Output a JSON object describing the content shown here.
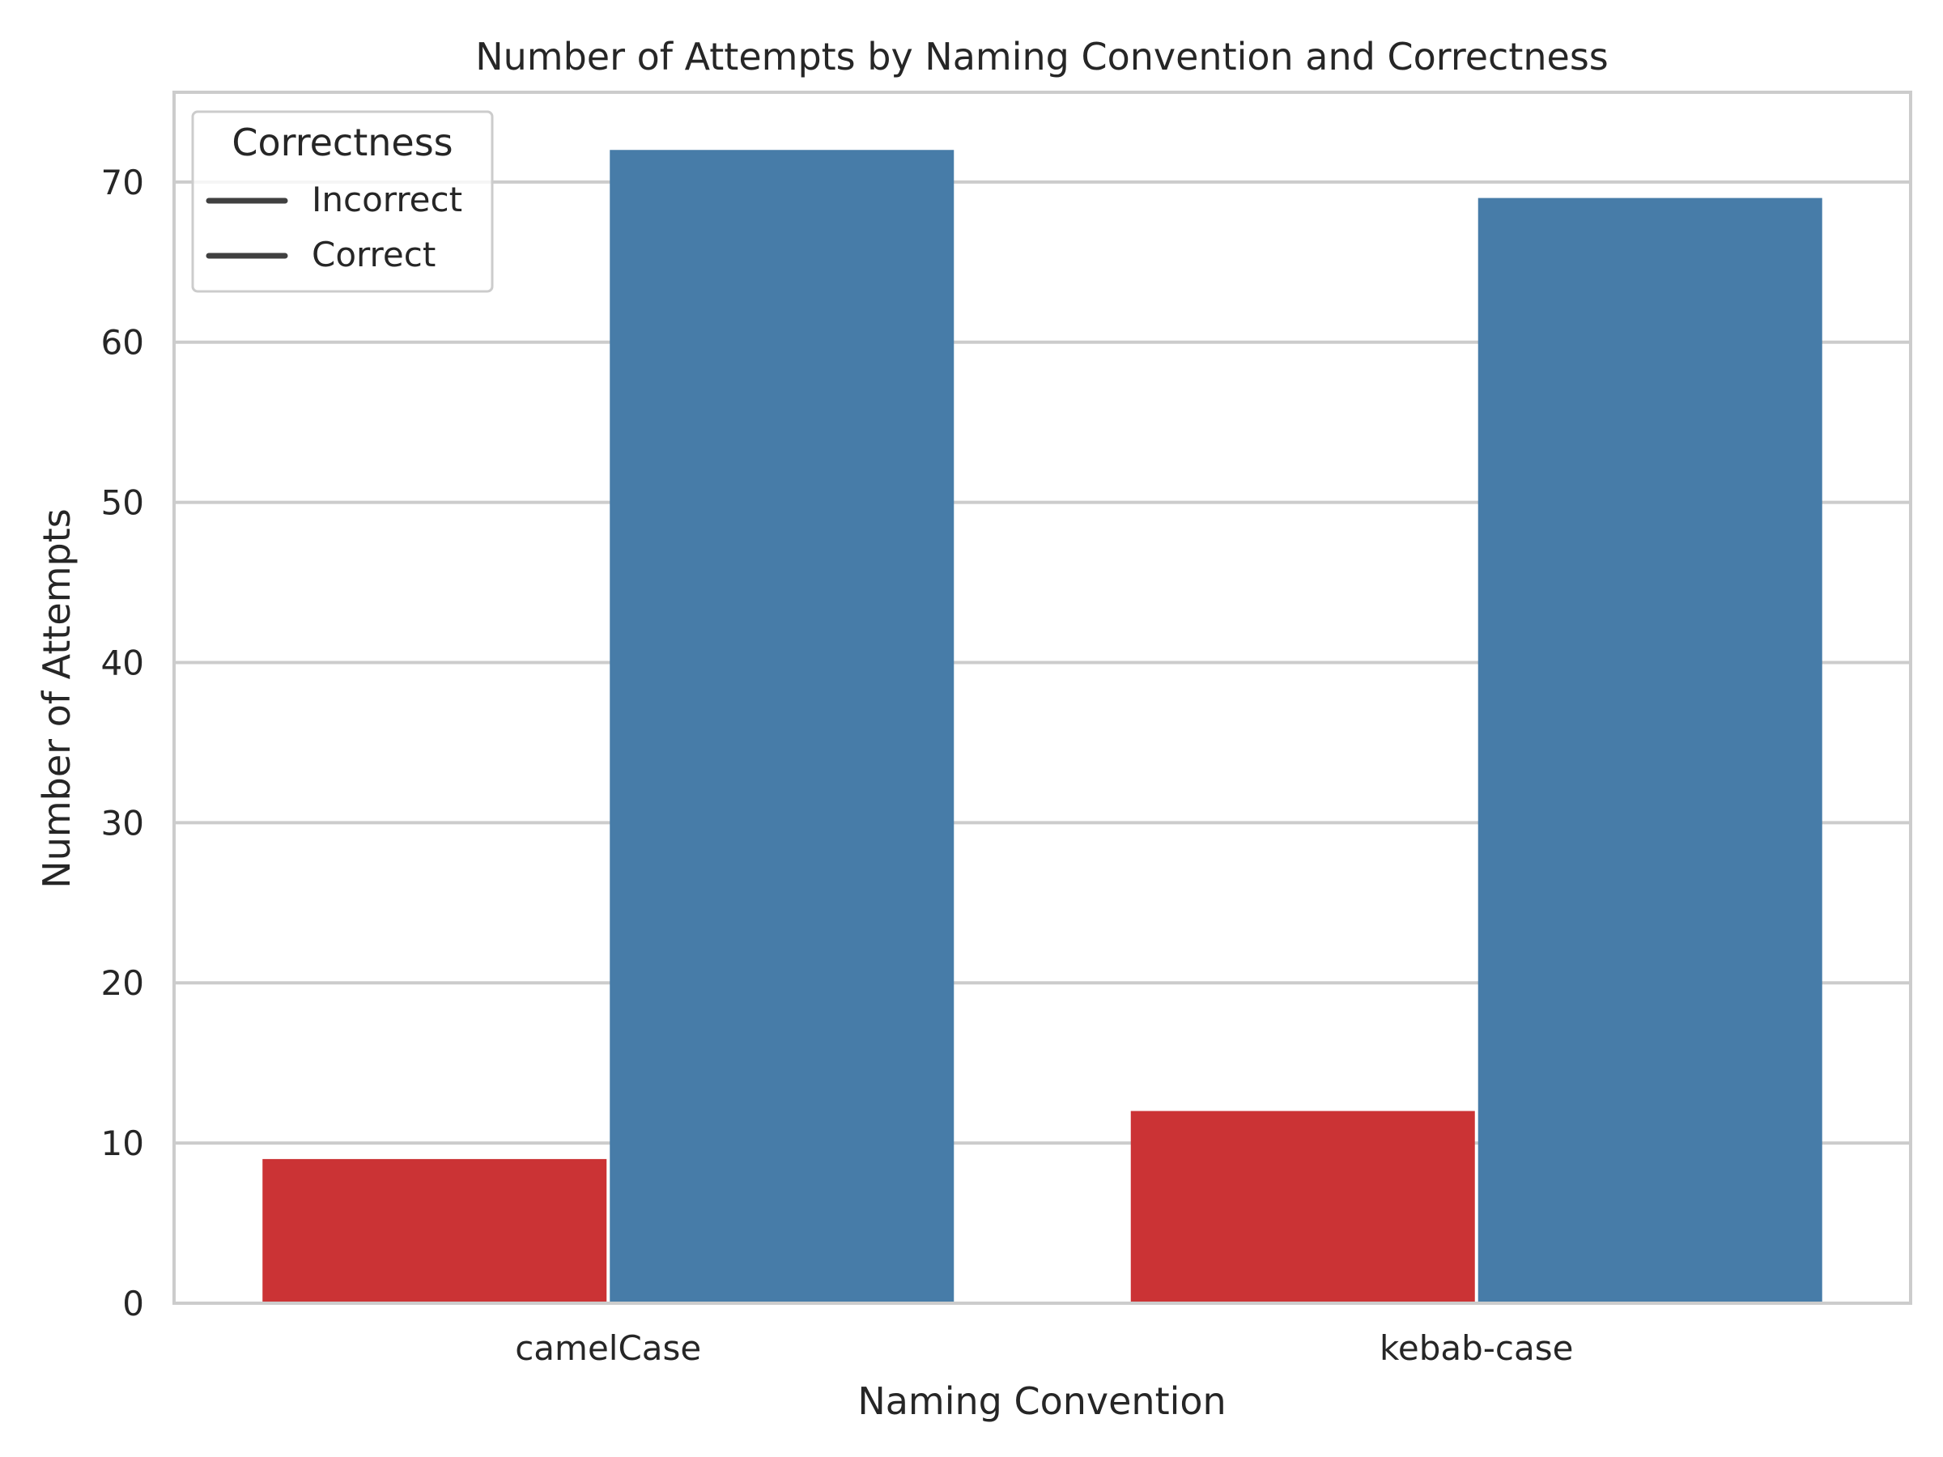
{
  "chart_data": {
    "type": "bar",
    "title": "Number of Attempts by Naming Convention and Correctness",
    "xlabel": "Naming Convention",
    "ylabel": "Number of Attempts",
    "categories": [
      "camelCase",
      "kebab-case"
    ],
    "series": [
      {
        "name": "Incorrect",
        "values": [
          9,
          12
        ],
        "color": "#cb3335"
      },
      {
        "name": "Correct",
        "values": [
          72,
          69
        ],
        "color": "#477ca8"
      }
    ],
    "ylim": [
      0,
      75.6
    ],
    "yticks": [
      0,
      10,
      20,
      30,
      40,
      50,
      60,
      70
    ],
    "grid": true,
    "legend": {
      "title": "Correctness",
      "labels": [
        "Incorrect",
        "Correct"
      ],
      "position": "top-left",
      "marker_color": "#404040"
    }
  }
}
